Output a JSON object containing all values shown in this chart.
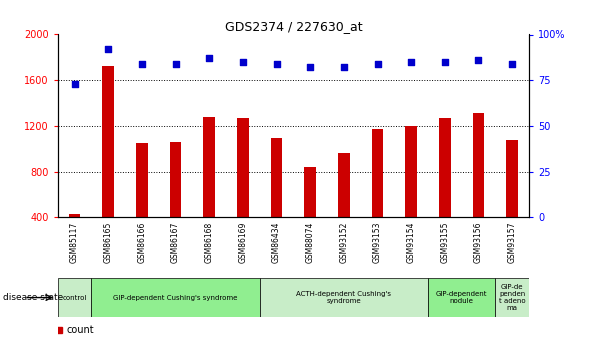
{
  "title": "GDS2374 / 227630_at",
  "samples": [
    "GSM85117",
    "GSM86165",
    "GSM86166",
    "GSM86167",
    "GSM86168",
    "GSM86169",
    "GSM86434",
    "GSM88074",
    "GSM93152",
    "GSM93153",
    "GSM93154",
    "GSM93155",
    "GSM93156",
    "GSM93157"
  ],
  "counts": [
    430,
    1720,
    1050,
    1060,
    1280,
    1270,
    1090,
    840,
    960,
    1175,
    1200,
    1270,
    1310,
    1080
  ],
  "percentiles": [
    73,
    92,
    84,
    84,
    87,
    85,
    84,
    82,
    82,
    84,
    85,
    85,
    86,
    84
  ],
  "disease_groups": [
    {
      "label": "control",
      "start": 0,
      "end": 1,
      "color": "#c8edc8"
    },
    {
      "label": "GIP-dependent Cushing's syndrome",
      "start": 1,
      "end": 6,
      "color": "#90ee90"
    },
    {
      "label": "ACTH-dependent Cushing's\nsyndrome",
      "start": 6,
      "end": 11,
      "color": "#c8edc8"
    },
    {
      "label": "GIP-dependent\nnodule",
      "start": 11,
      "end": 13,
      "color": "#90ee90"
    },
    {
      "label": "GIP-de\npenden\nt adeno\nma",
      "start": 13,
      "end": 14,
      "color": "#c8edc8"
    }
  ],
  "bar_color": "#cc0000",
  "dot_color": "#0000cc",
  "ylim_left": [
    400,
    2000
  ],
  "ylim_right": [
    0,
    100
  ],
  "yticks_left": [
    400,
    800,
    1200,
    1600,
    2000
  ],
  "yticks_right": [
    0,
    25,
    50,
    75,
    100
  ],
  "tick_area_color": "#c8c8c8"
}
